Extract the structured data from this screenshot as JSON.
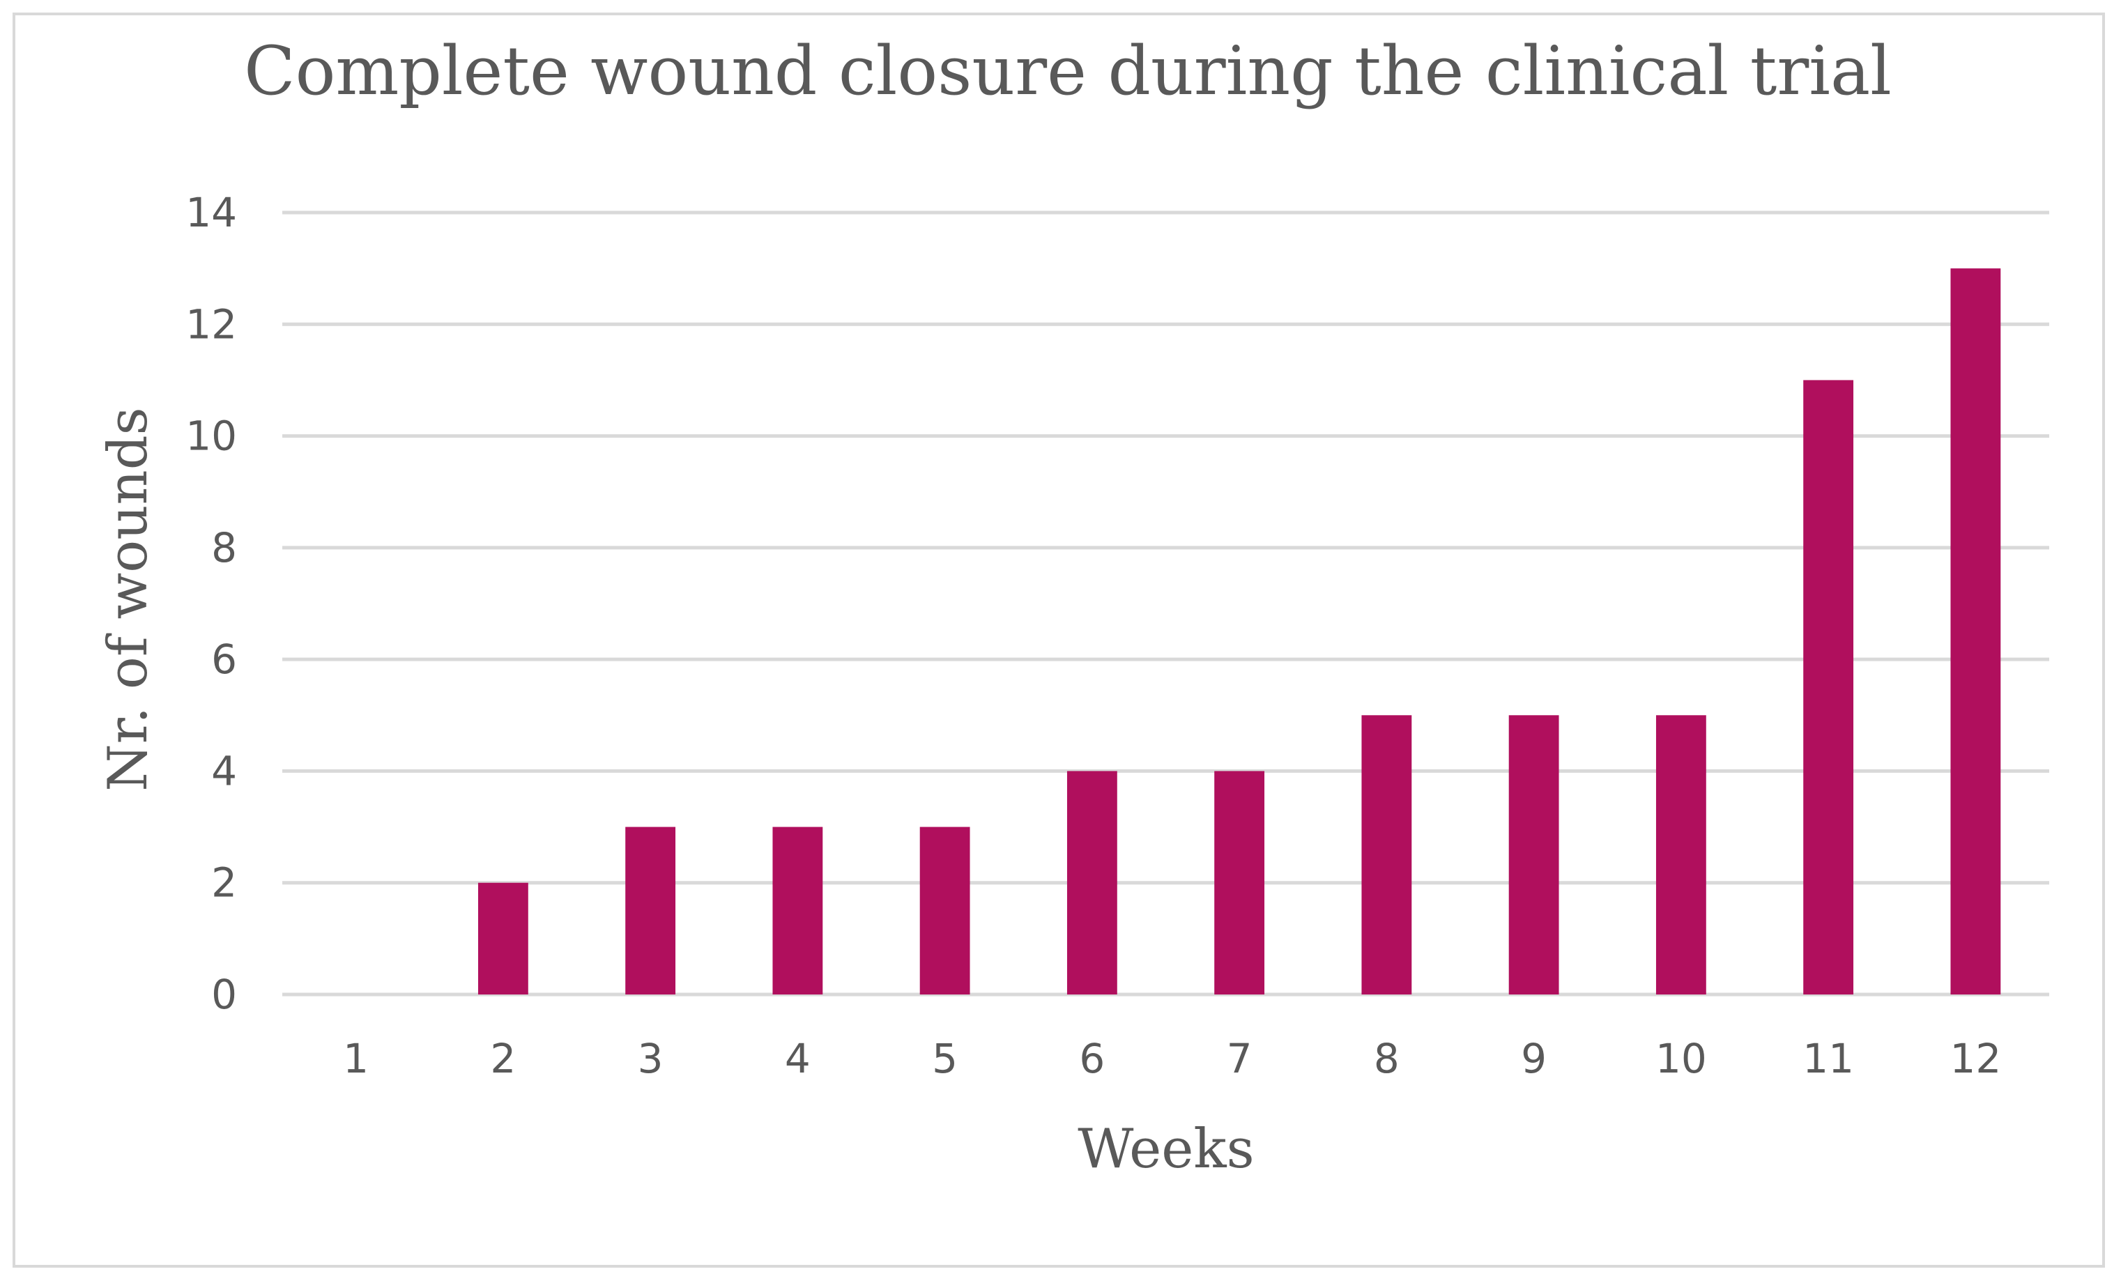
{
  "chart_data": {
    "type": "bar",
    "title": "Complete wound closure during the clinical trial",
    "xlabel": "Weeks",
    "ylabel": "Nr. of wounds",
    "categories": [
      "1",
      "2",
      "3",
      "4",
      "5",
      "6",
      "7",
      "8",
      "9",
      "10",
      "11",
      "12"
    ],
    "values": [
      0,
      2,
      3,
      3,
      3,
      4,
      4,
      5,
      5,
      5,
      11,
      13
    ],
    "ylim": [
      0,
      14
    ],
    "yticks": [
      0,
      2,
      4,
      6,
      8,
      10,
      12,
      14
    ],
    "grid": true,
    "legend": "none",
    "colors": {
      "bar": "#b00f5d",
      "grid": "#d9d9d9",
      "text": "#595959",
      "border": "#d9d9d9"
    }
  }
}
